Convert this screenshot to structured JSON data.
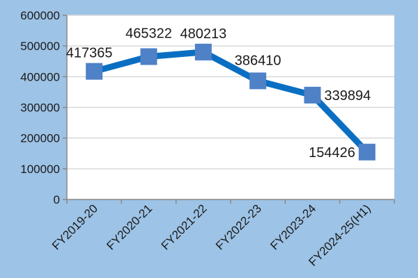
{
  "chart_data": {
    "type": "line",
    "title": "",
    "xlabel": "",
    "ylabel": "",
    "categories": [
      "FY2019-20",
      "FY2020-21",
      "FY2021-22",
      "FY2022-23",
      "FY2023-24",
      "FY2024-25(H1)"
    ],
    "values": [
      417365,
      465322,
      480213,
      386410,
      339894,
      154426
    ],
    "data_labels": [
      "417365",
      "465322",
      "480213",
      "386410",
      "339894",
      "154426"
    ],
    "ylim": [
      0,
      600000
    ],
    "yticks": [
      "0",
      "100000",
      "200000",
      "300000",
      "400000",
      "500000",
      "600000"
    ],
    "grid": true,
    "legend": "none",
    "marker": "square",
    "colors": {
      "line": "#0a6fc2",
      "marker": "#4f81c7",
      "background": "#9dc3e6",
      "plot": "#ffffff",
      "grid": "#d9d9d9"
    }
  }
}
